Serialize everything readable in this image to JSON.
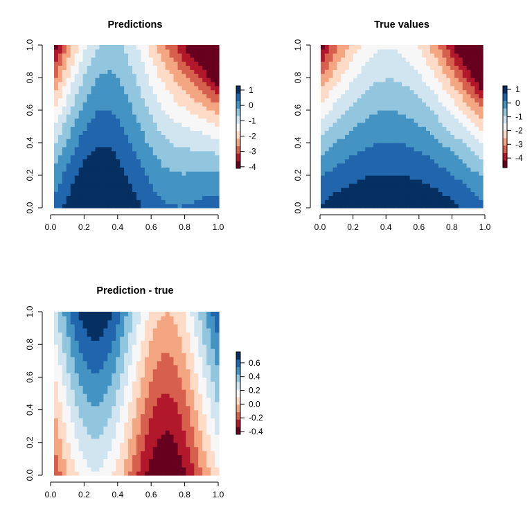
{
  "palette": [
    "#67001F",
    "#B2182B",
    "#D6604D",
    "#F4A582",
    "#FDDBC7",
    "#F7F7F7",
    "#D1E5F0",
    "#92C5DE",
    "#4393C3",
    "#2166AC",
    "#053061"
  ],
  "chart_data": [
    {
      "type": "heatmap",
      "id": "pred",
      "title": "Predictions",
      "xlabel": "",
      "ylabel": "",
      "xlim": [
        0,
        1
      ],
      "ylim": [
        0,
        1
      ],
      "xticks": [
        "0.0",
        "0.2",
        "0.4",
        "0.6",
        "0.8",
        "1.0"
      ],
      "yticks": [
        "0.0",
        "0.2",
        "0.4",
        "0.6",
        "0.8",
        "1.0"
      ],
      "zlim": [
        -4.1,
        1.27
      ],
      "legend_ticks": [
        "1",
        "0",
        "-1",
        "-2",
        "-3",
        "-4"
      ],
      "legend_tick_values": [
        1,
        0,
        -1,
        -2,
        -3,
        -4
      ],
      "legend_placement": "right",
      "grid_resolution": 40
    },
    {
      "type": "heatmap",
      "id": "true",
      "title": "True values",
      "xlabel": "",
      "ylabel": "",
      "xlim": [
        0,
        1
      ],
      "ylim": [
        0,
        1
      ],
      "xticks": [
        "0.0",
        "0.2",
        "0.4",
        "0.6",
        "0.8",
        "1.0"
      ],
      "yticks": [
        "0.0",
        "0.2",
        "0.4",
        "0.6",
        "0.8",
        "1.0"
      ],
      "zlim": [
        -4.7,
        1.25
      ],
      "legend_ticks": [
        "1",
        "0",
        "-1",
        "-2",
        "-3",
        "-4"
      ],
      "legend_tick_values": [
        1,
        0,
        -1,
        -2,
        -3,
        -4
      ],
      "legend_placement": "right",
      "grid_resolution": 40
    },
    {
      "type": "heatmap",
      "id": "diff",
      "title": "Prediction - true",
      "xlabel": "",
      "ylabel": "",
      "xlim": [
        0,
        1
      ],
      "ylim": [
        0,
        1
      ],
      "xticks": [
        "0.0",
        "0.2",
        "0.4",
        "0.6",
        "0.8",
        "1.0"
      ],
      "yticks": [
        "0.0",
        "0.2",
        "0.4",
        "0.6",
        "0.8",
        "1.0"
      ],
      "zlim": [
        -0.44,
        0.76
      ],
      "legend_ticks": [
        "0.6",
        "0.4",
        "0.2",
        "0.0",
        "-0.2",
        "-0.4"
      ],
      "legend_tick_values": [
        0.6,
        0.4,
        0.2,
        0.0,
        -0.2,
        -0.4
      ],
      "legend_placement": "right",
      "grid_resolution": 40
    }
  ]
}
